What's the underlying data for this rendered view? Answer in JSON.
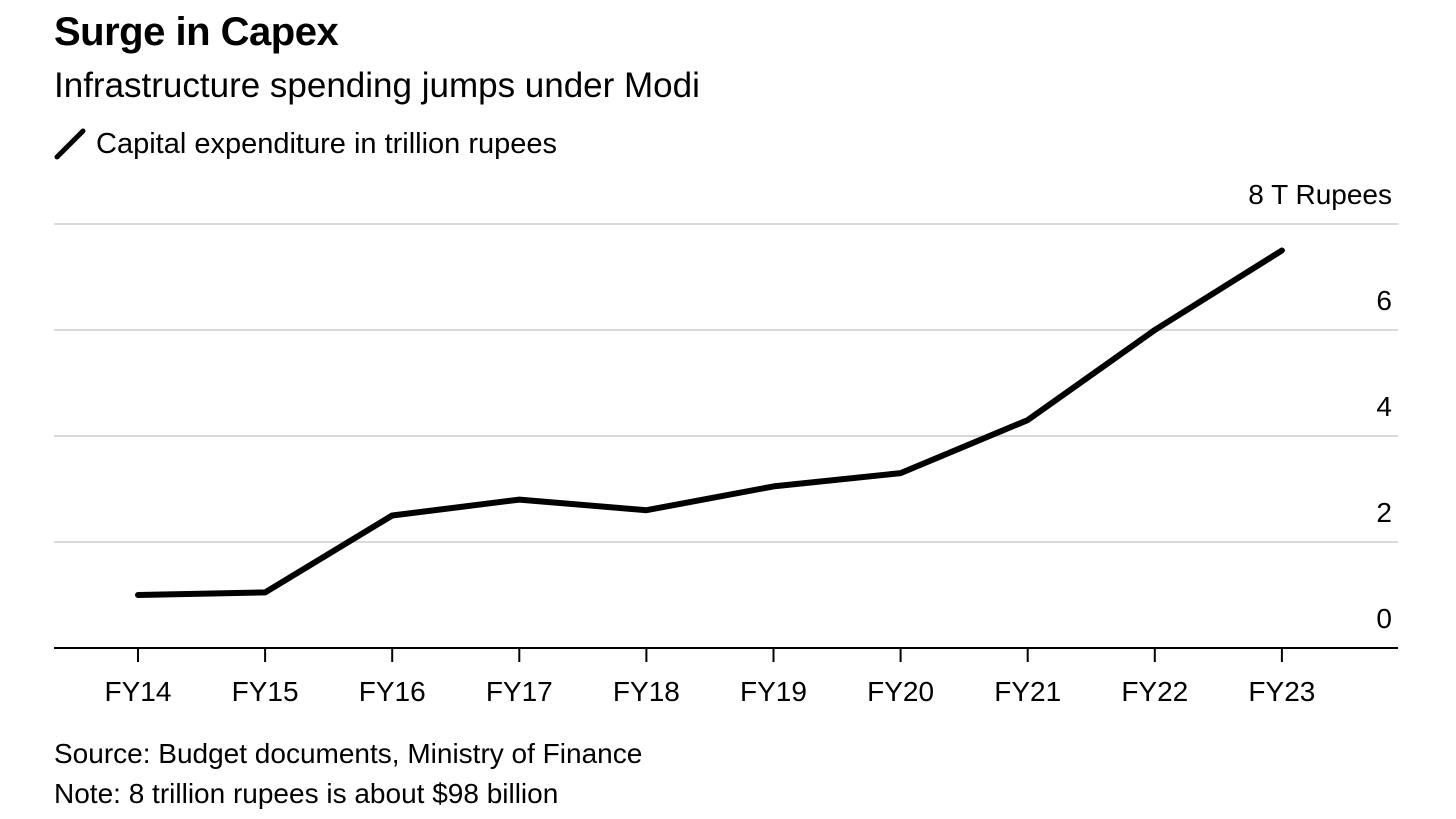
{
  "chart_data": {
    "type": "line",
    "title": "Surge in Capex",
    "subtitle": "Infrastructure spending jumps under Modi",
    "legend": {
      "placement": "top-left",
      "entries": [
        "Capital expenditure in trillion rupees"
      ]
    },
    "x": [
      "FY14",
      "FY15",
      "FY16",
      "FY17",
      "FY18",
      "FY19",
      "FY20",
      "FY21",
      "FY22",
      "FY23"
    ],
    "series": [
      {
        "name": "Capital expenditure in trillion rupees",
        "values": [
          1.0,
          1.05,
          2.5,
          2.8,
          2.6,
          3.05,
          3.3,
          4.3,
          6.0,
          7.5
        ]
      }
    ],
    "xlabel": "",
    "ylabel": "",
    "ylim": [
      0,
      8
    ],
    "yticks": [
      0,
      2,
      4,
      6,
      8
    ],
    "ytick_labels": [
      "0",
      "2",
      "4",
      "6",
      "8 T Rupees"
    ],
    "grid": true,
    "colors": {
      "line": "#000000",
      "grid": "#d9d9d9",
      "axis": "#000000"
    }
  },
  "footer": {
    "source": "Source: Budget documents, Ministry of Finance",
    "note": "Note: 8 trillion rupees is about $98 billion"
  }
}
